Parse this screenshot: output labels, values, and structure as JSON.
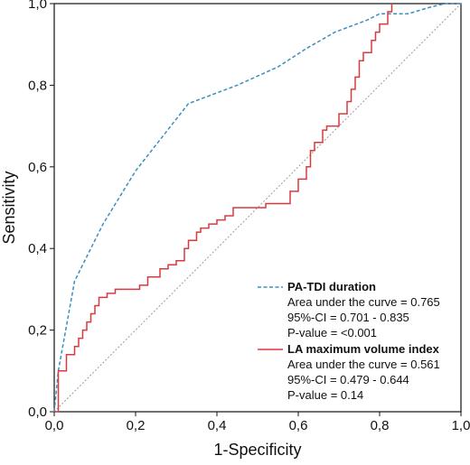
{
  "chart_data": {
    "type": "line",
    "xlabel": "1-Specificity",
    "ylabel": "Sensitivity",
    "xlim": [
      0,
      1
    ],
    "ylim": [
      0,
      1
    ],
    "x_ticks": [
      "0,0",
      "0,2",
      "0,4",
      "0,6",
      "0,8",
      "1,0"
    ],
    "y_ticks": [
      "0,0",
      "0,2",
      "0,4",
      "0,6",
      "0,8",
      "1,0"
    ],
    "grid": false,
    "legend_position": "bottom-right",
    "reference_line": {
      "x": [
        0,
        1
      ],
      "y": [
        0,
        1
      ],
      "style": "dotted",
      "color": "#9a9a9a"
    },
    "series": [
      {
        "name": "PA-TDI duration",
        "color": "#3a8fc0",
        "style": "dashed",
        "x": [
          0,
          0.01,
          0.05,
          0.12,
          0.2,
          0.33,
          0.45,
          0.55,
          0.62,
          0.69,
          0.77,
          0.8,
          0.83,
          0.87,
          0.92,
          0.96,
          1.0
        ],
        "y": [
          0,
          0.1,
          0.32,
          0.46,
          0.59,
          0.755,
          0.8,
          0.845,
          0.89,
          0.93,
          0.96,
          0.975,
          0.975,
          0.975,
          0.99,
          1.0,
          1.0
        ],
        "stats": {
          "auc": "Area under the curve = 0.765",
          "ci": "95%-CI = 0.701 - 0.835",
          "p": "P-value = <0.001"
        }
      },
      {
        "name": "LA maximum volume index",
        "color": "#d83a40",
        "style": "solid",
        "x": [
          0,
          0.01,
          0.01,
          0.03,
          0.03,
          0.05,
          0.05,
          0.06,
          0.06,
          0.07,
          0.07,
          0.08,
          0.08,
          0.09,
          0.09,
          0.1,
          0.1,
          0.11,
          0.11,
          0.13,
          0.13,
          0.15,
          0.15,
          0.21,
          0.21,
          0.23,
          0.23,
          0.26,
          0.26,
          0.28,
          0.28,
          0.3,
          0.3,
          0.32,
          0.32,
          0.33,
          0.33,
          0.35,
          0.35,
          0.36,
          0.36,
          0.38,
          0.38,
          0.4,
          0.4,
          0.42,
          0.42,
          0.44,
          0.44,
          0.52,
          0.52,
          0.58,
          0.58,
          0.6,
          0.6,
          0.62,
          0.62,
          0.63,
          0.63,
          0.64,
          0.64,
          0.66,
          0.66,
          0.67,
          0.67,
          0.7,
          0.7,
          0.72,
          0.72,
          0.73,
          0.73,
          0.74,
          0.74,
          0.75,
          0.75,
          0.76,
          0.76,
          0.78,
          0.78,
          0.79,
          0.79,
          0.8,
          0.8,
          0.82,
          0.82,
          0.83,
          0.83
        ],
        "y": [
          0,
          0,
          0.1,
          0.1,
          0.14,
          0.14,
          0.16,
          0.16,
          0.18,
          0.18,
          0.2,
          0.2,
          0.22,
          0.22,
          0.24,
          0.24,
          0.26,
          0.26,
          0.28,
          0.28,
          0.29,
          0.29,
          0.3,
          0.3,
          0.31,
          0.31,
          0.33,
          0.33,
          0.35,
          0.35,
          0.36,
          0.36,
          0.37,
          0.37,
          0.4,
          0.4,
          0.42,
          0.42,
          0.44,
          0.44,
          0.45,
          0.45,
          0.46,
          0.46,
          0.47,
          0.47,
          0.48,
          0.48,
          0.5,
          0.5,
          0.51,
          0.51,
          0.54,
          0.54,
          0.57,
          0.57,
          0.6,
          0.6,
          0.64,
          0.64,
          0.66,
          0.66,
          0.69,
          0.69,
          0.7,
          0.7,
          0.73,
          0.73,
          0.76,
          0.76,
          0.79,
          0.79,
          0.82,
          0.82,
          0.86,
          0.86,
          0.88,
          0.88,
          0.91,
          0.91,
          0.93,
          0.93,
          0.95,
          0.95,
          0.98,
          0.98,
          1.0
        ],
        "stats": {
          "auc": "Area under the curve = 0.561",
          "ci": "95%-CI = 0.479 - 0.644",
          "p": "P-value = 0.14"
        }
      }
    ]
  }
}
